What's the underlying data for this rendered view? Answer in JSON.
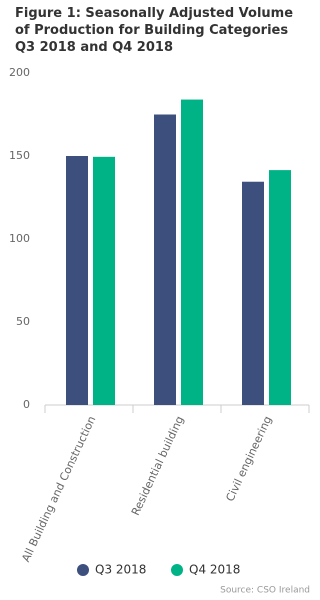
{
  "chart_data": {
    "type": "bar",
    "title": "Figure 1: Seasonally Adjusted Volume of Production for Building Categories Q3 2018 and Q4 2018",
    "categories": [
      "All Building and Construction",
      "Residential building",
      "Civil engineering"
    ],
    "series": [
      {
        "name": "Q3 2018",
        "color": "#3d4f7d",
        "values": [
          150,
          175,
          134.5
        ]
      },
      {
        "name": "Q4 2018",
        "color": "#00b386",
        "values": [
          149.5,
          184,
          141.5
        ]
      }
    ],
    "ylim": [
      0,
      200
    ],
    "yticks": [
      0,
      50,
      100,
      150,
      200
    ],
    "grid": false,
    "legend": "bottom",
    "source": "Source: CSO Ireland"
  }
}
